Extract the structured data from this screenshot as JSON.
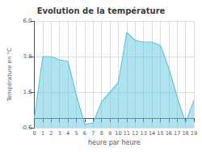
{
  "chart_data": {
    "type": "area",
    "title": "Evolution de la température",
    "xlabel": "heure par heure",
    "ylabel": "Température en °C",
    "x": [
      0,
      1,
      2,
      3,
      4,
      5,
      6,
      7,
      8,
      9,
      10,
      11,
      12,
      13,
      14,
      15,
      16,
      17,
      18,
      19
    ],
    "values": [
      0.0,
      3.8,
      3.8,
      3.6,
      3.5,
      1.4,
      -0.4,
      -0.3,
      1.0,
      1.6,
      2.2,
      5.3,
      4.8,
      4.7,
      4.7,
      4.5,
      3.1,
      1.3,
      -0.3,
      1.1
    ],
    "color": "#60c8e0",
    "xlim": [
      0,
      19
    ],
    "xticks": [
      0,
      1,
      2,
      3,
      4,
      5,
      6,
      7,
      8,
      9,
      10,
      11,
      12,
      13,
      14,
      15,
      16,
      17,
      18,
      19
    ],
    "ylim": [
      -0.6,
      6.0
    ],
    "yticks": [
      -0.6,
      1.6,
      3.8,
      {
        "value": 6.0,
        "label": "6.0"
      }
    ],
    "grid": true
  }
}
